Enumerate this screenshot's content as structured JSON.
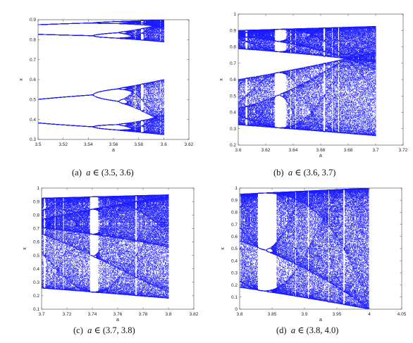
{
  "chart_data": [
    {
      "type": "scatter",
      "caption": {
        "tag": "(a)",
        "var": "a",
        "rest": "∈ (3.5, 3.6)"
      },
      "xlabel": "a",
      "ylabel": "x",
      "xlim": [
        3.5,
        3.62
      ],
      "ylim": [
        0.3,
        0.9
      ],
      "xticks": [
        "3.5",
        "3.52",
        "3.54",
        "3.56",
        "3.58",
        "3.6",
        "3.62"
      ],
      "yticks": [
        "0.3",
        "0.4",
        "0.5",
        "0.6",
        "0.7",
        "0.8",
        "0.9"
      ],
      "a_range": [
        3.5,
        3.6
      ],
      "color": "#1a1aff"
    },
    {
      "type": "scatter",
      "caption": {
        "tag": "(b)",
        "var": "a",
        "rest": "∈ (3.6, 3.7)"
      },
      "xlabel": "a",
      "ylabel": "x",
      "xlim": [
        3.6,
        3.72
      ],
      "ylim": [
        0.2,
        1.0
      ],
      "xticks": [
        "3.6",
        "3.62",
        "3.64",
        "3.66",
        "3.68",
        "3.7",
        "3.72"
      ],
      "yticks": [
        "0.2",
        "0.3",
        "0.4",
        "0.5",
        "0.6",
        "0.7",
        "0.8",
        "0.9",
        "1"
      ],
      "a_range": [
        3.6,
        3.7
      ],
      "color": "#1a1aff"
    },
    {
      "type": "scatter",
      "caption": {
        "tag": "(c)",
        "var": "a",
        "rest": "∈ (3.7, 3.8)"
      },
      "xlabel": "a",
      "ylabel": "x",
      "xlim": [
        3.7,
        3.82
      ],
      "ylim": [
        0.1,
        1.0
      ],
      "xticks": [
        "3.7",
        "3.72",
        "3.74",
        "3.76",
        "3.78",
        "3.8",
        "3.82"
      ],
      "yticks": [
        "0.1",
        "0.2",
        "0.3",
        "0.4",
        "0.5",
        "0.6",
        "0.7",
        "0.8",
        "0.9",
        "1"
      ],
      "a_range": [
        3.7,
        3.8
      ],
      "color": "#1a1aff"
    },
    {
      "type": "scatter",
      "caption": {
        "tag": "(d)",
        "var": "a",
        "rest": "∈ (3.8, 4.0)"
      },
      "xlabel": "a",
      "ylabel": "x",
      "xlim": [
        3.8,
        4.05
      ],
      "ylim": [
        0.0,
        1.0
      ],
      "xticks": [
        "3.8",
        "3.85",
        "3.9",
        "3.95",
        "4",
        "4.05"
      ],
      "yticks": [
        "0",
        "0.1",
        "0.2",
        "0.3",
        "0.4",
        "0.5",
        "0.6",
        "0.7",
        "0.8",
        "0.9",
        "1"
      ],
      "a_range": [
        3.8,
        4.0
      ],
      "color": "#1a1aff"
    }
  ]
}
